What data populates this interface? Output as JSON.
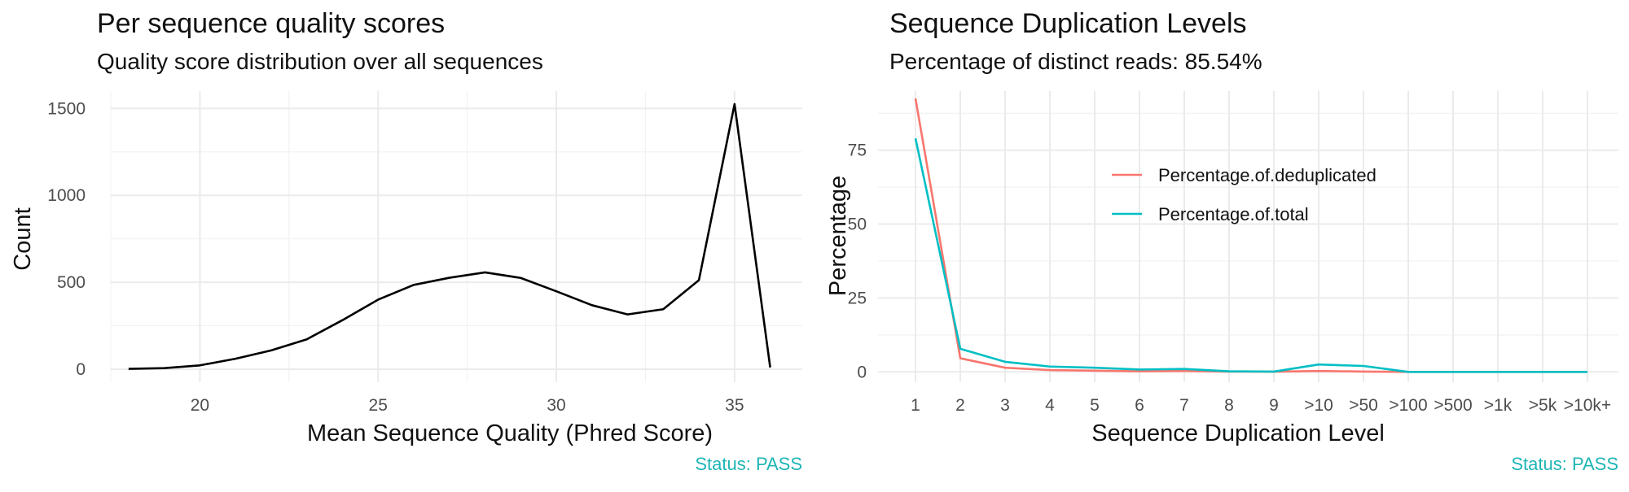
{
  "status": {
    "text": "Status: PASS",
    "color": "#1fb5b5"
  },
  "chart_data": [
    {
      "type": "line",
      "title": "Per sequence quality scores",
      "subtitle": "Quality score distribution over all sequences",
      "xlabel": "Mean Sequence Quality (Phred Score)",
      "ylabel": "Count",
      "xlim": [
        17.5,
        36.9
      ],
      "ylim": [
        -75,
        1600
      ],
      "xticks": [
        20,
        25,
        30,
        35
      ],
      "yticks": [
        0,
        500,
        1000,
        1500
      ],
      "grid": true,
      "line_color": "#000000",
      "x": [
        18,
        19,
        20,
        21,
        22,
        23,
        24,
        25,
        26,
        27,
        28,
        29,
        30,
        31,
        32,
        33,
        34,
        35,
        36
      ],
      "series": [
        {
          "values": [
            2,
            6,
            22,
            60,
            108,
            172,
            282,
            400,
            485,
            526,
            557,
            525,
            448,
            368,
            315,
            345,
            512,
            1525,
            10
          ]
        }
      ]
    },
    {
      "type": "line",
      "title": "Sequence Duplication Levels",
      "subtitle": "Percentage of distinct reads: 85.54%",
      "xlabel": "Sequence Duplication Level",
      "ylabel": "Percentage",
      "ylim": [
        -3.5,
        95
      ],
      "yticks": [
        0,
        25,
        50,
        75
      ],
      "grid": true,
      "legend_position": "inside-top-center",
      "categories": [
        "1",
        "2",
        "3",
        "4",
        "5",
        "6",
        "7",
        "8",
        "9",
        ">10",
        ">50",
        ">100",
        ">500",
        ">1k",
        ">5k",
        ">10k+"
      ],
      "series": [
        {
          "name": "Percentage.of.deduplicated",
          "color": "#f8766d",
          "values": [
            92.5,
            4.6,
            1.4,
            0.6,
            0.4,
            0.2,
            0.3,
            0.1,
            0.05,
            0.3,
            0.1,
            0.0,
            0.0,
            0.0,
            0.0,
            0.0
          ]
        },
        {
          "name": "Percentage.of.total",
          "color": "#00bfc4",
          "values": [
            79.0,
            7.8,
            3.4,
            1.8,
            1.4,
            0.8,
            1.0,
            0.2,
            0.1,
            2.5,
            2.0,
            0.0,
            0.0,
            0.0,
            0.0,
            0.0
          ]
        }
      ]
    }
  ]
}
